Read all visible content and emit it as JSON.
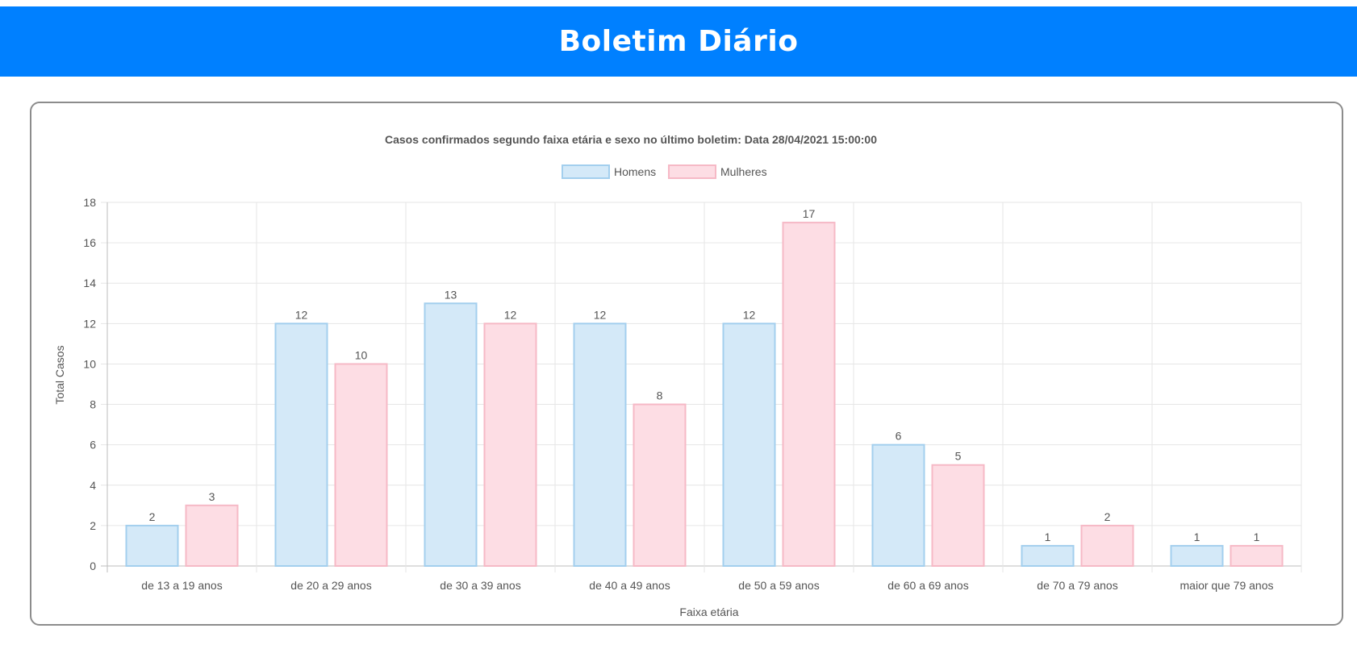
{
  "header": {
    "title": "Boletim Diário",
    "bg_color": "#0080ff"
  },
  "chart_data": {
    "type": "bar",
    "title": "Casos confirmados segundo faixa etária e sexo no último boletim: Data 28/04/2021 15:00:00",
    "xlabel": "Faixa etária",
    "ylabel": "Total Casos",
    "ylim": [
      0,
      18
    ],
    "yticks": [
      0,
      2,
      4,
      6,
      8,
      10,
      12,
      14,
      16,
      18
    ],
    "grid": true,
    "legend_position": "top",
    "categories": [
      "de 13 a 19 anos",
      "de 20 a 29 anos",
      "de 30 a 39 anos",
      "de 40 a 49 anos",
      "de 50 a 59 anos",
      "de 60 a 69 anos",
      "de 70 a 79 anos",
      "maior que 79 anos"
    ],
    "series": [
      {
        "name": "Homens",
        "values": [
          2,
          12,
          13,
          12,
          12,
          6,
          1,
          1
        ],
        "fill": "#d4e9f8",
        "stroke": "#a3cfee"
      },
      {
        "name": "Mulheres",
        "values": [
          3,
          10,
          12,
          8,
          17,
          5,
          2,
          1
        ],
        "fill": "#fddde4",
        "stroke": "#f6b9c6"
      }
    ]
  }
}
